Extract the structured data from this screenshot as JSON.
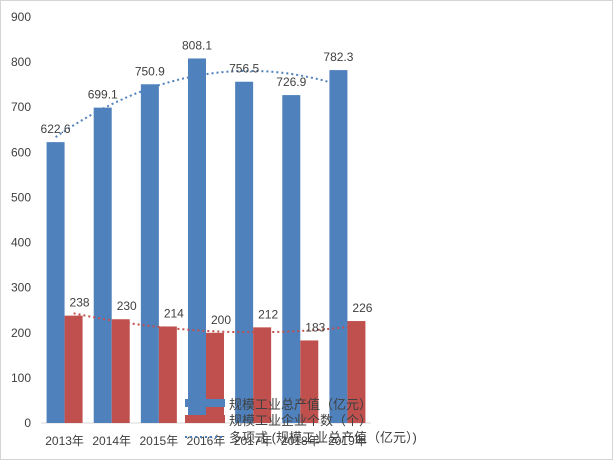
{
  "chart_data": {
    "type": "bar",
    "categories": [
      "2013年",
      "2014年",
      "2015年",
      "2016年",
      "2017年",
      "2018年",
      "2019年"
    ],
    "series": [
      {
        "name": "规模工业总产值（亿元）",
        "color": "#4F81BD",
        "values": [
          622.6,
          699.1,
          750.9,
          808.1,
          756.5,
          726.9,
          782.3
        ]
      },
      {
        "name": "规模工业企业个数（个）",
        "color": "#C0504D",
        "values": [
          238,
          230,
          214,
          200,
          212,
          183,
          226
        ]
      }
    ],
    "trendlines": [
      {
        "name": "多项式 (规模工业总产值（亿元）)",
        "series_index": 0,
        "kind": "polynomial",
        "style": "dotted",
        "color": "#4F81BD"
      },
      {
        "name": "",
        "series_index": 1,
        "kind": "polynomial",
        "style": "dotted",
        "color": "#C0504D"
      }
    ],
    "y_ticks": [
      0,
      100,
      200,
      300,
      400,
      500,
      600,
      700,
      800,
      900
    ],
    "ylim": [
      0,
      900
    ],
    "title": "",
    "xlabel": "",
    "ylabel": "",
    "grid": false,
    "data_labels": true,
    "legend_position": "bottom-right (overlapping plot)"
  }
}
